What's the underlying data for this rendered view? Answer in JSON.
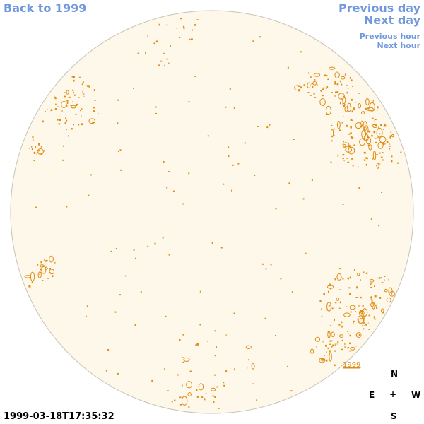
{
  "nav": {
    "back_label": "Back to 1999",
    "prev_day_label": "Previous day",
    "next_day_label": "Next day",
    "prev_hour_label": "Previous hour",
    "next_hour_label": "Next hour",
    "link_color": "#6f98dd"
  },
  "disk": {
    "fill_color": "#fef8ea",
    "edge_color": "#c8c2b4",
    "contour_color": "#e08c14",
    "year_label": "1999"
  },
  "compass": {
    "north": "N",
    "east": "E",
    "center": "+",
    "west": "W",
    "south": "S"
  },
  "timestamp": "1999-03-18T17:35:32"
}
